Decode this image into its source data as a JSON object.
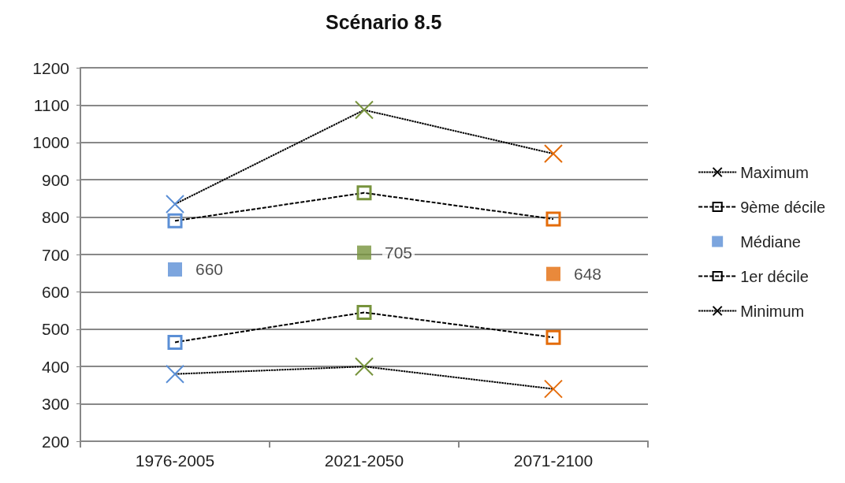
{
  "chart_data": {
    "type": "line",
    "title": "Scénario 8.5",
    "categories": [
      "1976-2005",
      "2021-2050",
      "2071-2100"
    ],
    "series": [
      {
        "name": "Maximum",
        "color": "#000000",
        "colors": [
          "#5b8fd6",
          "#77933c",
          "#e46c0a"
        ],
        "marker": "cross",
        "line_style": "dotted",
        "values": [
          835,
          1087,
          970
        ]
      },
      {
        "name": "9ème décile",
        "color": "#000000",
        "colors": [
          "#5b8fd6",
          "#77933c",
          "#e46c0a"
        ],
        "marker": "square",
        "line_style": "dashed",
        "values": [
          790,
          865,
          795
        ]
      },
      {
        "name": "Médiane",
        "type": "scatter",
        "color": "#5b8fd6",
        "colors": [
          "#5b8fd6",
          "#77933c",
          "#e46c0a"
        ],
        "marker": "square",
        "values": [
          660,
          705,
          648
        ],
        "value_labels": [
          "660",
          "705",
          "648"
        ]
      },
      {
        "name": "1er décile",
        "color": "#000000",
        "colors": [
          "#5b8fd6",
          "#77933c",
          "#e46c0a"
        ],
        "marker": "square",
        "line_style": "dashed",
        "values": [
          465,
          545,
          478
        ]
      },
      {
        "name": "Minimum",
        "color": "#000000",
        "colors": [
          "#5b8fd6",
          "#77933c",
          "#e46c0a"
        ],
        "marker": "cross",
        "line_style": "dotted",
        "values": [
          380,
          400,
          340
        ]
      }
    ],
    "ylim": [
      200,
      1200
    ],
    "yticks": [
      200,
      300,
      400,
      500,
      600,
      700,
      800,
      900,
      1000,
      1100,
      1200
    ],
    "grid": "y",
    "legend": "right"
  }
}
